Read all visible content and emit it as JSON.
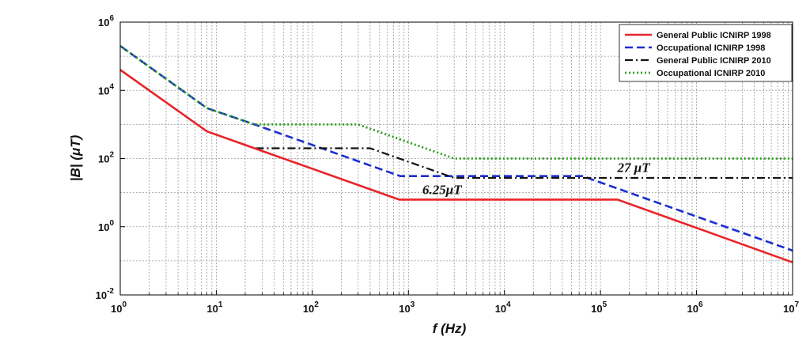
{
  "chart_data": {
    "type": "line",
    "title": "",
    "xlabel": "f (Hz)",
    "ylabel": "|B| (μT)",
    "xscale": "log",
    "yscale": "log",
    "xlim": [
      1,
      10000000
    ],
    "ylim": [
      0.01,
      1000000
    ],
    "grid": true,
    "legend_position": "top-right",
    "x_ticks": [
      {
        "value": 1,
        "base": "10",
        "exp": "0"
      },
      {
        "value": 10,
        "base": "10",
        "exp": "1"
      },
      {
        "value": 100,
        "base": "10",
        "exp": "2"
      },
      {
        "value": 1000,
        "base": "10",
        "exp": "3"
      },
      {
        "value": 10000,
        "base": "10",
        "exp": "4"
      },
      {
        "value": 100000,
        "base": "10",
        "exp": "5"
      },
      {
        "value": 1000000,
        "base": "10",
        "exp": "6"
      },
      {
        "value": 10000000,
        "base": "10",
        "exp": "7"
      }
    ],
    "y_ticks": [
      {
        "value": 0.01,
        "base": "10",
        "exp": "-2"
      },
      {
        "value": 1,
        "base": "10",
        "exp": "0"
      },
      {
        "value": 100,
        "base": "10",
        "exp": "2"
      },
      {
        "value": 10000,
        "base": "10",
        "exp": "4"
      },
      {
        "value": 1000000,
        "base": "10",
        "exp": "6"
      }
    ],
    "series": [
      {
        "name": "General Public ICNIRP 1998",
        "color": "#e8252a",
        "style": "solid",
        "points": [
          [
            1,
            40000
          ],
          [
            8,
            625
          ],
          [
            25,
            200
          ],
          [
            800,
            6.25
          ],
          [
            150000,
            6.25
          ],
          [
            10000000,
            0.09
          ]
        ]
      },
      {
        "name": "Occupational ICNIRP 1998",
        "color": "#1a2fd0",
        "style": "dashed",
        "points": [
          [
            1,
            200000
          ],
          [
            8,
            3000
          ],
          [
            25,
            1000
          ],
          [
            820,
            30.5
          ],
          [
            65000,
            30.5
          ],
          [
            10000000,
            0.2
          ]
        ]
      },
      {
        "name": "General Public ICNIRP 2010",
        "color": "#111111",
        "style": "dashdot",
        "points": [
          [
            1,
            40000
          ],
          [
            8,
            625
          ],
          [
            25,
            200
          ],
          [
            400,
            200
          ],
          [
            3000,
            27
          ],
          [
            10000000,
            27
          ]
        ]
      },
      {
        "name": "Occupational ICNIRP 2010",
        "color": "#2e9e1f",
        "style": "dotted",
        "points": [
          [
            1,
            200000
          ],
          [
            8,
            3000
          ],
          [
            25,
            1000
          ],
          [
            300,
            1000
          ],
          [
            3000,
            100
          ],
          [
            10000000,
            100
          ]
        ]
      }
    ],
    "annotations": [
      {
        "text": "27 μT",
        "x": 150000,
        "y": 40
      },
      {
        "text": "6.25μT",
        "x": 1400,
        "y": 9
      }
    ]
  }
}
